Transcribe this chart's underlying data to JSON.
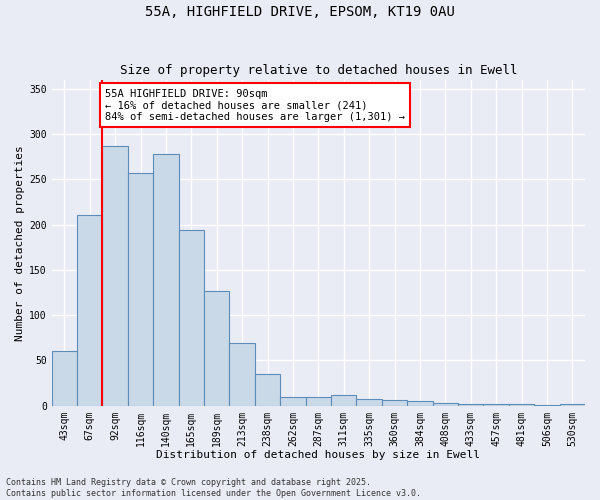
{
  "title_line1": "55A, HIGHFIELD DRIVE, EPSOM, KT19 0AU",
  "title_line2": "Size of property relative to detached houses in Ewell",
  "xlabel": "Distribution of detached houses by size in Ewell",
  "ylabel": "Number of detached properties",
  "bars": [
    {
      "label": "43sqm",
      "value": 60
    },
    {
      "label": "67sqm",
      "value": 210
    },
    {
      "label": "92sqm",
      "value": 287
    },
    {
      "label": "116sqm",
      "value": 257
    },
    {
      "label": "140sqm",
      "value": 278
    },
    {
      "label": "165sqm",
      "value": 194
    },
    {
      "label": "189sqm",
      "value": 127
    },
    {
      "label": "213sqm",
      "value": 69
    },
    {
      "label": "238sqm",
      "value": 35
    },
    {
      "label": "262sqm",
      "value": 10
    },
    {
      "label": "287sqm",
      "value": 10
    },
    {
      "label": "311sqm",
      "value": 12
    },
    {
      "label": "335sqm",
      "value": 7
    },
    {
      "label": "360sqm",
      "value": 6
    },
    {
      "label": "384sqm",
      "value": 5
    },
    {
      "label": "408sqm",
      "value": 3
    },
    {
      "label": "433sqm",
      "value": 2
    },
    {
      "label": "457sqm",
      "value": 2
    },
    {
      "label": "481sqm",
      "value": 2
    },
    {
      "label": "506sqm",
      "value": 1
    },
    {
      "label": "530sqm",
      "value": 2
    }
  ],
  "bar_color": "#c9d9e8",
  "bar_edge_color": "#5b8db8",
  "vline_x": 1.5,
  "vline_color": "red",
  "annotation_text": "55A HIGHFIELD DRIVE: 90sqm\n← 16% of detached houses are smaller (241)\n84% of semi-detached houses are larger (1,301) →",
  "annotation_box_color": "white",
  "annotation_box_edge_color": "red",
  "ylim": [
    0,
    360
  ],
  "yticks": [
    0,
    50,
    100,
    150,
    200,
    250,
    300,
    350
  ],
  "background_color": "#eaecf5",
  "plot_bg_color": "#eaecf5",
  "grid_color": "white",
  "footer_text": "Contains HM Land Registry data © Crown copyright and database right 2025.\nContains public sector information licensed under the Open Government Licence v3.0.",
  "title_fontsize": 10,
  "subtitle_fontsize": 9,
  "axis_label_fontsize": 8,
  "tick_fontsize": 7,
  "annotation_fontsize": 7.5
}
